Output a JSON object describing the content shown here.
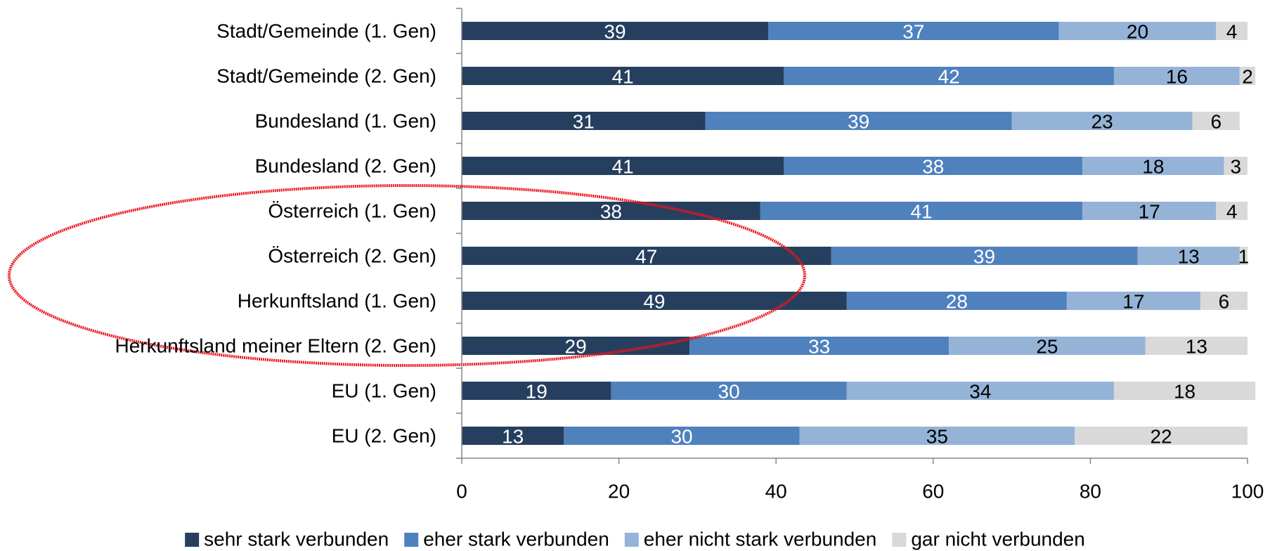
{
  "chart_data": {
    "type": "stacked-bar-horizontal",
    "categories": [
      "Stadt/Gemeinde (1. Gen)",
      "Stadt/Gemeinde (2. Gen)",
      "Bundesland (1. Gen)",
      "Bundesland (2. Gen)",
      "Österreich (1. Gen)",
      "Österreich (2. Gen)",
      "Herkunftsland (1. Gen)",
      "Herkunftsland meiner Eltern (2. Gen)",
      "EU (1. Gen)",
      "EU (2. Gen)"
    ],
    "series": [
      {
        "name": "sehr stark verbunden",
        "color": "#263f5f",
        "label_color": "#ffffff",
        "values": [
          39,
          41,
          31,
          41,
          38,
          47,
          49,
          29,
          19,
          13
        ]
      },
      {
        "name": "eher stark verbunden",
        "color": "#4f81bd",
        "label_color": "#ffffff",
        "values": [
          37,
          42,
          39,
          38,
          41,
          39,
          28,
          33,
          30,
          30
        ]
      },
      {
        "name": "eher nicht stark verbunden",
        "color": "#95b3d7",
        "label_color": "#000000",
        "values": [
          20,
          16,
          23,
          18,
          17,
          13,
          17,
          25,
          34,
          35
        ]
      },
      {
        "name": "gar nicht verbunden",
        "color": "#d9d9d9",
        "label_color": "#000000",
        "values": [
          4,
          2,
          6,
          3,
          4,
          1,
          6,
          13,
          18,
          22
        ]
      }
    ],
    "xlim": [
      0,
      100
    ],
    "xticks": [
      0,
      20,
      40,
      60,
      80,
      100
    ],
    "grid": false,
    "legend": "bottom"
  }
}
